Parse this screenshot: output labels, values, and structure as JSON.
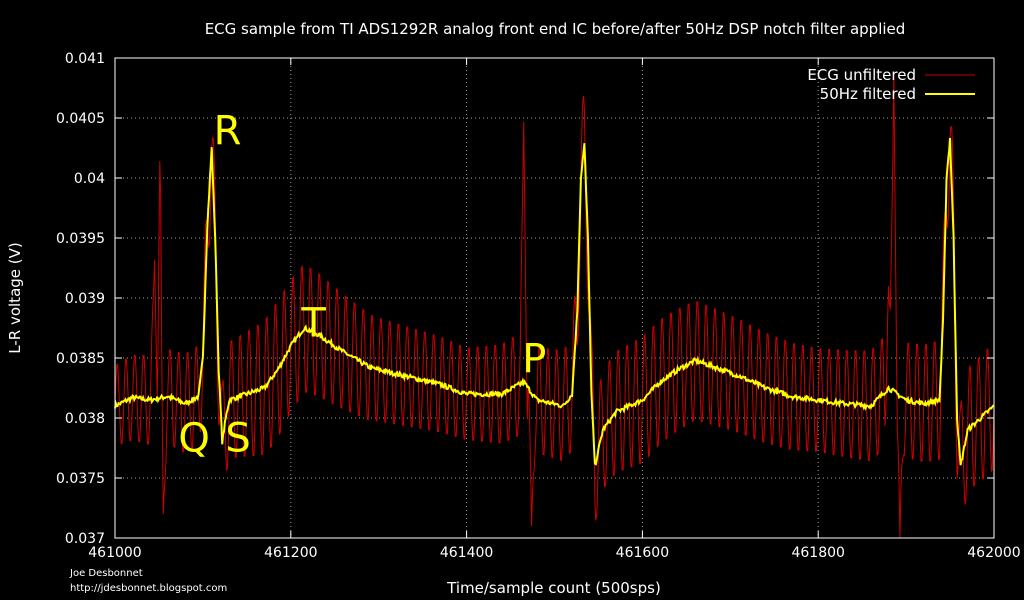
{
  "chart_data": {
    "type": "line",
    "title": "ECG sample from TI ADS1292R analog front end IC before/after 50Hz DSP notch filter applied",
    "xlabel": "Time/sample count (500sps)",
    "ylabel": "L-R voltage (V)",
    "xlim": [
      461000,
      462000
    ],
    "ylim": [
      0.037,
      0.041
    ],
    "x_ticks": [
      461000,
      461200,
      461400,
      461600,
      461800,
      462000
    ],
    "y_ticks": [
      0.037,
      0.0375,
      0.038,
      0.0385,
      0.039,
      0.0395,
      0.04,
      0.0405,
      0.041
    ],
    "x_tick_labels": [
      "461000",
      "461200",
      "461400",
      "461600",
      "461800",
      "462000"
    ],
    "y_tick_labels": [
      "0.037",
      "0.0375",
      "0.038",
      "0.0385",
      "0.039",
      "0.0395",
      "0.04",
      "0.0405",
      "0.041"
    ],
    "grid": true,
    "legend_position": "top-right",
    "series": [
      {
        "name": "ECG unfiltered",
        "color": "#cc0000",
        "oscillation_amplitude": [
          [
            461000,
            0.00035
          ],
          [
            461100,
            0.00045
          ],
          [
            461180,
            0.0006
          ],
          [
            461300,
            0.00045
          ],
          [
            461400,
            0.0004
          ],
          [
            461600,
            0.00055
          ],
          [
            461800,
            0.00045
          ],
          [
            462000,
            0.00055
          ]
        ],
        "spikes": [
          {
            "x": 461045,
            "y": 0.03932
          },
          {
            "x": 461052,
            "y": 0.04072
          },
          {
            "x": 461055,
            "y": 0.0372
          },
          {
            "x": 461465,
            "y": 0.04047
          },
          {
            "x": 461474,
            "y": 0.0371
          },
          {
            "x": 461880,
            "y": 0.0391
          },
          {
            "x": 461886,
            "y": 0.04088
          },
          {
            "x": 461893,
            "y": 0.037
          }
        ]
      },
      {
        "name": "50Hz filtered",
        "color": "#ffff00",
        "points": [
          [
            461000,
            0.0381
          ],
          [
            461020,
            0.03817
          ],
          [
            461040,
            0.03815
          ],
          [
            461060,
            0.03818
          ],
          [
            461080,
            0.03812
          ],
          [
            461095,
            0.03818
          ],
          [
            461100,
            0.0385
          ],
          [
            461105,
            0.0396
          ],
          [
            461110,
            0.04025
          ],
          [
            461114,
            0.0395
          ],
          [
            461118,
            0.0384
          ],
          [
            461122,
            0.0378
          ],
          [
            461126,
            0.038
          ],
          [
            461130,
            0.03815
          ],
          [
            461150,
            0.0382
          ],
          [
            461170,
            0.03825
          ],
          [
            461185,
            0.0384
          ],
          [
            461200,
            0.0386
          ],
          [
            461215,
            0.03875
          ],
          [
            461230,
            0.0387
          ],
          [
            461260,
            0.03855
          ],
          [
            461290,
            0.03842
          ],
          [
            461330,
            0.03835
          ],
          [
            461370,
            0.03828
          ],
          [
            461400,
            0.0382
          ],
          [
            461440,
            0.0382
          ],
          [
            461465,
            0.0383
          ],
          [
            461480,
            0.03815
          ],
          [
            461510,
            0.0381
          ],
          [
            461520,
            0.0382
          ],
          [
            461526,
            0.0389
          ],
          [
            461530,
            0.04
          ],
          [
            461534,
            0.04028
          ],
          [
            461538,
            0.0395
          ],
          [
            461542,
            0.0382
          ],
          [
            461546,
            0.0376
          ],
          [
            461555,
            0.0379
          ],
          [
            461570,
            0.03805
          ],
          [
            461600,
            0.03815
          ],
          [
            461620,
            0.0383
          ],
          [
            461640,
            0.0384
          ],
          [
            461660,
            0.03848
          ],
          [
            461680,
            0.03843
          ],
          [
            461710,
            0.03835
          ],
          [
            461740,
            0.03825
          ],
          [
            461770,
            0.03818
          ],
          [
            461800,
            0.03815
          ],
          [
            461830,
            0.03812
          ],
          [
            461860,
            0.0381
          ],
          [
            461880,
            0.03825
          ],
          [
            461900,
            0.03815
          ],
          [
            461920,
            0.03812
          ],
          [
            461938,
            0.03815
          ],
          [
            461942,
            0.0388
          ],
          [
            461946,
            0.04
          ],
          [
            461950,
            0.04033
          ],
          [
            461954,
            0.0395
          ],
          [
            461958,
            0.038
          ],
          [
            461962,
            0.0376
          ],
          [
            461970,
            0.0379
          ],
          [
            461985,
            0.038
          ],
          [
            462000,
            0.0381
          ]
        ]
      }
    ],
    "annotations": [
      {
        "text": "R",
        "x": 461128,
        "y": 0.04028
      },
      {
        "text": "Q",
        "x": 461090,
        "y": 0.03772
      },
      {
        "text": "S",
        "x": 461140,
        "y": 0.03772
      },
      {
        "text": "T",
        "x": 461226,
        "y": 0.03868
      },
      {
        "text": "P",
        "x": 461477,
        "y": 0.03838
      }
    ]
  },
  "credit": {
    "author": "Joe Desbonnet",
    "url": "http://jdesbonnet.blogspot.com"
  }
}
